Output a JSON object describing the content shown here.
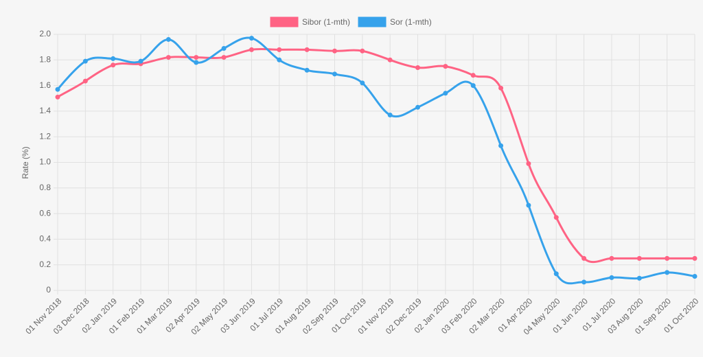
{
  "chart_data": {
    "type": "line",
    "y_label": "Rate (%)",
    "categories": [
      "01 Nov 2018",
      "03 Dec 2018",
      "02 Jan 2019",
      "01 Feb 2019",
      "01 Mar 2019",
      "02 Apr 2019",
      "02 May 2019",
      "03 Jun 2019",
      "01 Jul 2019",
      "01 Aug 2019",
      "02 Sep 2019",
      "01 Oct 2019",
      "01 Nov 2019",
      "02 Dec 2019",
      "02 Jan 2020",
      "03 Feb 2020",
      "02 Mar 2020",
      "01 Apr 2020",
      "04 May 2020",
      "01 Jun 2020",
      "01 Jul 2020",
      "03 Aug 2020",
      "01 Sep 2020",
      "01 Oct 2020"
    ],
    "series": [
      {
        "name": "Sibor (1-mth)",
        "color": "#ff6384",
        "values": [
          1.51,
          1.635,
          1.76,
          1.77,
          1.82,
          1.82,
          1.82,
          1.88,
          1.88,
          1.88,
          1.87,
          1.87,
          1.8,
          1.74,
          1.75,
          1.68,
          1.58,
          0.99,
          0.57,
          0.25,
          0.25,
          0.25,
          0.25,
          0.25
        ]
      },
      {
        "name": "Sor (1-mth)",
        "color": "#36a2eb",
        "values": [
          1.57,
          1.79,
          1.81,
          1.79,
          1.96,
          1.78,
          1.89,
          1.97,
          1.8,
          1.72,
          1.69,
          1.62,
          1.37,
          1.43,
          1.54,
          1.6,
          1.13,
          0.665,
          0.13,
          0.065,
          0.1,
          0.095,
          0.14,
          0.11
        ]
      }
    ],
    "ylim": [
      0,
      2
    ],
    "yticks": [
      0,
      0.2,
      0.4,
      0.6,
      0.8,
      {
        "value": 1,
        "label": "1.0"
      },
      1.2,
      1.4,
      1.6,
      1.8,
      {
        "value": 2,
        "label": "2.0"
      }
    ],
    "grid": true
  }
}
